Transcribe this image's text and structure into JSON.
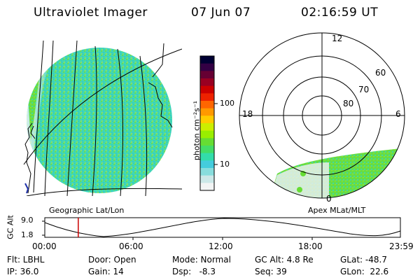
{
  "header": {
    "title": "Ultraviolet Imager",
    "date": "07 Jun 07",
    "time": "02:16:59 UT"
  },
  "geo_panel": {
    "label": "Geographic Lat/Lon"
  },
  "apex_panel": {
    "label": "Apex MLat/MLT",
    "mlt_labels": [
      "12",
      "18",
      "6",
      "0"
    ],
    "mlat_labels": [
      "60",
      "70",
      "80"
    ]
  },
  "colorbar": {
    "label": "photon cm⁻²s⁻¹",
    "scale": "log",
    "ticks": [
      "100",
      "10"
    ],
    "colors": [
      "#000033",
      "#330044",
      "#660033",
      "#990022",
      "#cc0000",
      "#ee2200",
      "#ff6600",
      "#ff9900",
      "#ffcc00",
      "#ccee00",
      "#99ee00",
      "#66dd33",
      "#44dd66",
      "#33ddaa",
      "#44ccdd",
      "#88dddd",
      "#cce8e8",
      "#f2f4f4"
    ]
  },
  "altitude_plot": {
    "ylabel": "GC Alt",
    "yticks": [
      "9.0",
      "1.8"
    ],
    "xticks": [
      "00:00",
      "06:00",
      "12:00",
      "18:00",
      "23:59"
    ],
    "marker_color": "#cc0000",
    "marker_fraction": 0.094
  },
  "info": {
    "row1": {
      "filter": "Flt: LBHL",
      "door": "Door: Open",
      "mode": "Mode: Normal",
      "gc_alt": "GC Alt: 4.8 Re",
      "glat": "GLat: -48.7"
    },
    "row2": {
      "ip": "IP: 36.0",
      "gain": "Gain: 14",
      "dsp": "Dsp:   -8.3",
      "seq": "Seq: 39",
      "glon": "GLon:  22.6"
    }
  }
}
